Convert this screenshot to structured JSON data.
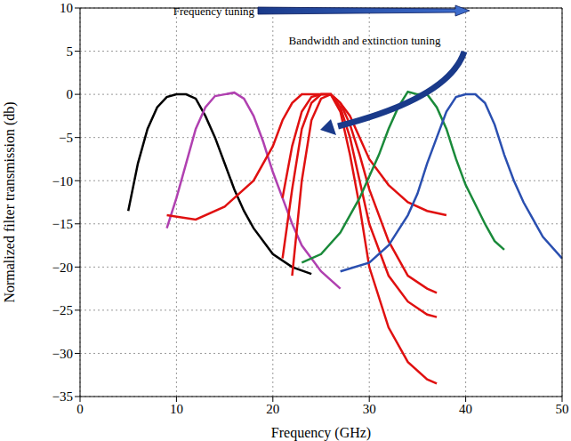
{
  "chart_data": {
    "type": "line",
    "x_label": "Frequency (GHz)",
    "y_label": "Normalized filter transmission (db)",
    "xlim": [
      0,
      50
    ],
    "xticks": [
      0,
      10,
      20,
      30,
      40,
      50
    ],
    "ylim": [
      -35,
      10
    ],
    "yticks": [
      {
        "value": -35,
        "label": "−35"
      },
      {
        "value": -30,
        "label": "−30"
      },
      {
        "value": -25,
        "label": "−25"
      },
      {
        "value": -20,
        "label": "−20"
      },
      {
        "value": -15,
        "label": "−15"
      },
      {
        "value": -10,
        "label": "−10"
      },
      {
        "value": -5,
        "label": "−5"
      },
      0,
      5,
      10
    ],
    "grid": true,
    "annotations": [
      {
        "text": "Frequency tuning"
      },
      {
        "text": "Bandwidth and extinction tuning"
      }
    ],
    "series": [
      {
        "color": "#000000",
        "x": [
          5,
          6,
          7,
          8,
          9,
          10,
          11,
          12,
          13,
          14,
          15,
          16,
          17,
          18,
          20,
          22,
          24
        ],
        "values": [
          -13.5,
          -8,
          -4,
          -1.5,
          -0.3,
          0,
          0,
          -0.5,
          -2.5,
          -5,
          -8,
          -11,
          -13.5,
          -15.5,
          -18.5,
          -20,
          -20.8
        ]
      },
      {
        "color": "#b040b0",
        "x": [
          9,
          10,
          11,
          12,
          13,
          14,
          15,
          16,
          17,
          18,
          19,
          20,
          21,
          22,
          23,
          25,
          27
        ],
        "values": [
          -15.5,
          -12,
          -8,
          -4,
          -1.5,
          -0.2,
          0,
          0.2,
          -0.5,
          -2.5,
          -5.5,
          -9,
          -12,
          -15,
          -17.5,
          -20.5,
          -22.5
        ]
      },
      {
        "color": "#e01010",
        "x": [
          9,
          12,
          15,
          18,
          20,
          21,
          22,
          23,
          25,
          26,
          27,
          28,
          29,
          30,
          32,
          34,
          36,
          38
        ],
        "values": [
          -14,
          -14.5,
          -13,
          -10,
          -6,
          -3,
          -1,
          0,
          0,
          0,
          -1,
          -2.5,
          -5,
          -7.5,
          -10.5,
          -12.5,
          -13.5,
          -14
        ]
      },
      {
        "color": "#e01010",
        "x": [
          21,
          22,
          23,
          24,
          25,
          26,
          27,
          28,
          29,
          30,
          32,
          34,
          36,
          37
        ],
        "values": [
          -12,
          -6,
          -2,
          -0.3,
          0,
          0,
          -1,
          -3.5,
          -7,
          -11,
          -17,
          -21,
          -22.5,
          -23
        ]
      },
      {
        "color": "#e01010",
        "x": [
          21,
          22,
          23,
          24,
          25,
          26,
          27,
          28,
          29,
          30,
          32,
          34,
          36,
          37
        ],
        "values": [
          -19,
          -11,
          -4,
          -1,
          0,
          0,
          -1.5,
          -5,
          -10,
          -15,
          -21,
          -24,
          -25.5,
          -25.8
        ]
      },
      {
        "color": "#e01010",
        "x": [
          22,
          23,
          24,
          25,
          26,
          27,
          28,
          29,
          30,
          32,
          34,
          36,
          37
        ],
        "values": [
          -21,
          -10,
          -3,
          -0.5,
          0,
          -2,
          -7,
          -13,
          -20,
          -27,
          -31,
          -33,
          -33.5
        ]
      },
      {
        "color": "#1a8a3a",
        "x": [
          23,
          25,
          27,
          29,
          31,
          32,
          33,
          34,
          35,
          36,
          37,
          38,
          39,
          40,
          42,
          43,
          44
        ],
        "values": [
          -19.5,
          -18.5,
          -16,
          -12,
          -7,
          -4,
          -1.5,
          0.3,
          0,
          0,
          -1.5,
          -4,
          -7.5,
          -10.5,
          -15,
          -17,
          -18
        ]
      },
      {
        "color": "#2a4fb0",
        "x": [
          27,
          30,
          32,
          34,
          35,
          36,
          37,
          38,
          39,
          40,
          41,
          42,
          43,
          44,
          45,
          46,
          47,
          48,
          50
        ],
        "values": [
          -20.5,
          -19.5,
          -17.5,
          -14,
          -11.5,
          -8,
          -5,
          -2,
          -0.3,
          0,
          0,
          -1,
          -3.5,
          -7,
          -10,
          -12.5,
          -14.5,
          -16.5,
          -19
        ]
      }
    ]
  }
}
